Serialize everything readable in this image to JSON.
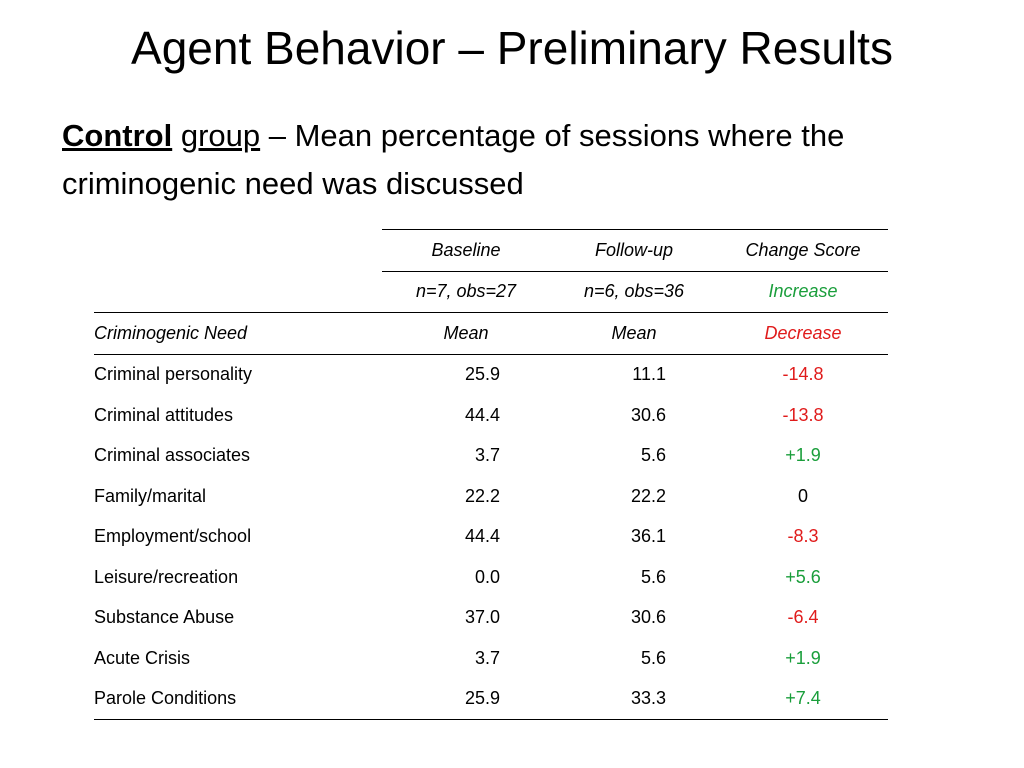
{
  "slide": {
    "title": "Agent Behavior – Preliminary Results",
    "subtitle": {
      "bold_part": "Control",
      "underlined_part": "group",
      "rest": " – Mean percentage of sessions where the criminogenic need was discussed"
    }
  },
  "table": {
    "headers": {
      "baseline": "Baseline",
      "followup": "Follow-up",
      "change": "Change Score"
    },
    "samples": {
      "baseline": "n=7, obs=27",
      "followup": "n=6, obs=36",
      "change_legend_increase": "Increase"
    },
    "units": {
      "need_label": "Criminogenic Need",
      "baseline": "Mean",
      "followup": "Mean",
      "change_legend_decrease": "Decrease"
    },
    "colors": {
      "increase": "#1a9e3b",
      "decrease": "#e01b1b"
    },
    "rows": [
      {
        "need": "Criminal personality",
        "baseline": "25.9",
        "followup": "11.1",
        "change": "-14.8",
        "direction": "decrease"
      },
      {
        "need": "Criminal attitudes",
        "baseline": "44.4",
        "followup": "30.6",
        "change": "-13.8",
        "direction": "decrease"
      },
      {
        "need": "Criminal associates",
        "baseline": "3.7",
        "followup": "5.6",
        "change": "+1.9",
        "direction": "increase"
      },
      {
        "need": "Family/marital",
        "baseline": "22.2",
        "followup": "22.2",
        "change": "0",
        "direction": "none"
      },
      {
        "need": "Employment/school",
        "baseline": "44.4",
        "followup": "36.1",
        "change": "-8.3",
        "direction": "decrease"
      },
      {
        "need": "Leisure/recreation",
        "baseline": "0.0",
        "followup": "5.6",
        "change": "+5.6",
        "direction": "increase"
      },
      {
        "need": "Substance Abuse",
        "baseline": "37.0",
        "followup": "30.6",
        "change": "-6.4",
        "direction": "decrease"
      },
      {
        "need": "Acute Crisis",
        "baseline": "3.7",
        "followup": "5.6",
        "change": "+1.9",
        "direction": "increase"
      },
      {
        "need": "Parole Conditions",
        "baseline": "25.9",
        "followup": "33.3",
        "change": "+7.4",
        "direction": "increase"
      }
    ]
  }
}
